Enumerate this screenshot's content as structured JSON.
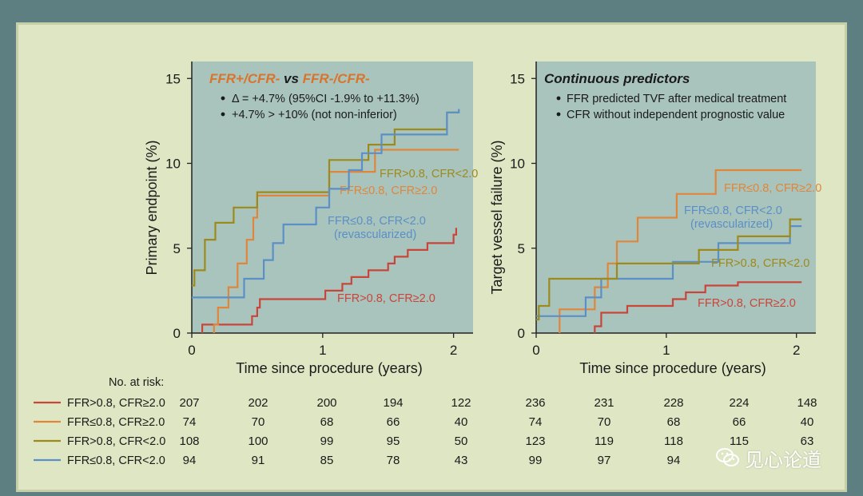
{
  "colors": {
    "red": "#c9453a",
    "orange": "#e0863a",
    "olive": "#9c8a1c",
    "blue": "#5a8fc7",
    "plot_bg": "#a9c4bd",
    "title_orange": "#d9742c",
    "text": "#1a1a1a"
  },
  "chart_data": [
    {
      "type": "line",
      "step": true,
      "title_parts": [
        "FFR+/CFR-",
        " vs ",
        "FFR-/CFR-"
      ],
      "bullets": [
        "Δ = +4.7% (95%CI -1.9% to +11.3%)",
        "+4.7% > +10% (not non-inferior)"
      ],
      "xlabel": "Time since procedure (years)",
      "ylabel": "Primary endpoint (%)",
      "xlim": [
        0,
        2.1
      ],
      "ylim": [
        0,
        16
      ],
      "xticks": [
        "0",
        "1",
        "2"
      ],
      "yticks": [
        "0",
        "5",
        "10",
        "15"
      ],
      "series": [
        {
          "name": "FFR>0.8, CFR≥2.0",
          "label_lines": [
            "FFR>0.8, CFR≥2.0"
          ],
          "color": "red",
          "x": [
            0.08,
            0.08,
            0.45,
            0.46,
            0.48,
            0.5,
            0.52,
            1.0,
            1.02,
            1.15,
            1.22,
            1.35,
            1.5,
            1.55,
            1.65,
            1.7,
            1.8,
            1.88,
            2.0,
            2.02
          ],
          "y": [
            0,
            0.5,
            0.5,
            1.0,
            1.0,
            1.5,
            2.0,
            2.0,
            2.5,
            2.9,
            3.3,
            3.7,
            4.1,
            4.5,
            4.9,
            4.9,
            5.3,
            5.3,
            5.8,
            6.2
          ]
        },
        {
          "name": "FFR≤0.8, CFR≥2.0",
          "label_lines": [
            "FFR≤0.8, CFR≥2.0"
          ],
          "color": "orange",
          "x": [
            0.17,
            0.17,
            0.2,
            0.28,
            0.35,
            0.42,
            0.47,
            0.5,
            0.55,
            0.65,
            0.75,
            1.0,
            1.05,
            1.28,
            1.4,
            1.5,
            1.75,
            2.0,
            2.04
          ],
          "y": [
            0,
            0.5,
            1.5,
            2.7,
            4.1,
            5.5,
            6.8,
            8.1,
            8.1,
            8.1,
            8.1,
            8.1,
            9.5,
            9.5,
            10.8,
            10.8,
            10.8,
            10.8,
            10.8
          ]
        },
        {
          "name": "FFR>0.8, CFR<2.0",
          "label_lines": [
            "FFR>0.8, CFR<2.0"
          ],
          "color": "olive",
          "x": [
            0,
            0.02,
            0.1,
            0.18,
            0.32,
            0.5,
            0.62,
            0.8,
            1.05,
            1.15,
            1.35,
            1.55,
            1.75,
            1.95,
            2.04
          ],
          "y": [
            2.8,
            3.7,
            5.5,
            6.5,
            7.4,
            8.3,
            8.3,
            8.3,
            10.2,
            10.2,
            11.1,
            12.0,
            12.0,
            13.0,
            13.0
          ]
        },
        {
          "name": "FFR≤0.8, CFR<2.0",
          "label_lines": [
            "FFR≤0.8, CFR<2.0",
            "(revascularized)"
          ],
          "color": "blue",
          "x": [
            0,
            0.2,
            0.3,
            0.4,
            0.55,
            0.62,
            0.7,
            0.8,
            0.95,
            1.05,
            1.2,
            1.3,
            1.45,
            1.6,
            1.78,
            1.95,
            2.04
          ],
          "y": [
            2.1,
            2.1,
            2.1,
            3.2,
            4.3,
            5.3,
            6.4,
            6.4,
            7.4,
            8.5,
            9.6,
            10.6,
            11.7,
            11.7,
            11.7,
            13.0,
            13.2
          ]
        }
      ]
    },
    {
      "type": "line",
      "step": true,
      "title_parts": [
        "Continuous predictors"
      ],
      "bullets": [
        "FFR predicted TVF after medical treatment",
        "CFR without independent prognostic value"
      ],
      "xlabel": "Time since procedure (years)",
      "ylabel": "Target vessel failure (%)",
      "xlim": [
        0,
        2.1
      ],
      "ylim": [
        0,
        16
      ],
      "xticks": [
        "0",
        "1",
        "2"
      ],
      "yticks": [
        "0",
        "5",
        "10",
        "15"
      ],
      "series": [
        {
          "name": "FFR≤0.8, CFR≥2.0",
          "label_lines": [
            "FFR≤0.8, CFR≥2.0"
          ],
          "color": "orange",
          "x": [
            0.18,
            0.18,
            0.35,
            0.45,
            0.55,
            0.62,
            0.78,
            1.0,
            1.08,
            1.25,
            1.38,
            1.55,
            2.04
          ],
          "y": [
            0,
            1.4,
            1.4,
            2.7,
            4.1,
            5.4,
            6.8,
            6.8,
            8.2,
            8.2,
            9.6,
            9.6,
            9.6
          ]
        },
        {
          "name": "FFR≤0.8, CFR<2.0",
          "label_lines": [
            "FFR≤0.8, CFR<2.0",
            "(revascularized)"
          ],
          "color": "blue",
          "x": [
            0,
            0.12,
            0.38,
            0.5,
            0.62,
            0.78,
            1.05,
            1.25,
            1.4,
            1.55,
            1.75,
            1.95,
            2.04
          ],
          "y": [
            1.0,
            1.0,
            2.1,
            3.2,
            3.2,
            3.2,
            4.2,
            4.2,
            5.3,
            5.3,
            5.3,
            6.3,
            6.3
          ]
        },
        {
          "name": "FFR>0.8, CFR<2.0",
          "label_lines": [
            "FFR>0.8, CFR<2.0"
          ],
          "color": "olive",
          "x": [
            0,
            0.02,
            0.1,
            0.5,
            0.62,
            1.0,
            1.25,
            1.48,
            1.55,
            1.75,
            1.95,
            2.04
          ],
          "y": [
            0.8,
            1.6,
            3.2,
            3.2,
            4.1,
            4.1,
            4.9,
            4.9,
            5.7,
            5.7,
            6.7,
            6.7
          ]
        },
        {
          "name": "FFR>0.8, CFR≥2.0",
          "label_lines": [
            "FFR>0.8, CFR≥2.0"
          ],
          "color": "red",
          "x": [
            0.45,
            0.45,
            0.5,
            0.6,
            0.7,
            0.95,
            1.05,
            1.15,
            1.3,
            1.55,
            1.9,
            2.04
          ],
          "y": [
            0,
            0.4,
            1.2,
            1.2,
            1.6,
            1.6,
            2.0,
            2.4,
            2.8,
            3.0,
            3.0,
            3.0
          ]
        }
      ]
    }
  ],
  "risk_table": {
    "title": "No. at risk:",
    "rows": [
      {
        "label": "FFR>0.8, CFR≥2.0",
        "color": "red",
        "left": [
          "207",
          "202",
          "200",
          "194",
          "122"
        ],
        "right": [
          "236",
          "231",
          "228",
          "224",
          "148"
        ]
      },
      {
        "label": "FFR≤0.8, CFR≥2.0",
        "color": "orange",
        "left": [
          "74",
          "70",
          "68",
          "66",
          "40"
        ],
        "right": [
          "74",
          "70",
          "68",
          "66",
          "40"
        ]
      },
      {
        "label": "FFR>0.8, CFR<2.0",
        "color": "olive",
        "left": [
          "108",
          "100",
          "99",
          "95",
          "50"
        ],
        "right": [
          "123",
          "119",
          "118",
          "115",
          "63"
        ]
      },
      {
        "label": "FFR≤0.8, CFR<2.0",
        "color": "blue",
        "left": [
          "94",
          "91",
          "85",
          "78",
          "43"
        ],
        "right": [
          "99",
          "97",
          "94",
          "",
          ""
        ]
      }
    ]
  },
  "watermark": {
    "text": "见心论道",
    "icon": "wechat-icon"
  }
}
